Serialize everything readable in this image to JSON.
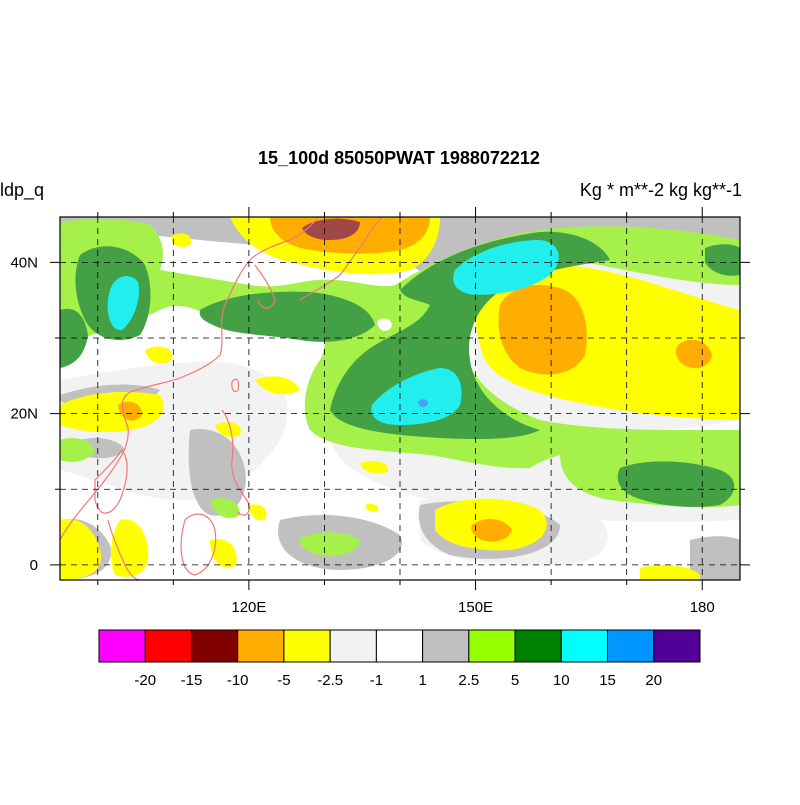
{
  "title": "15_100d 85050PWAT  1988072212",
  "left_label": "ldp_q",
  "units_label": "Kg  * m**-2 kg kg**-1",
  "map": {
    "lon_range": [
      95,
      185
    ],
    "lat_range": [
      -2,
      46
    ],
    "lon_ticks": [
      {
        "value": 120,
        "label": "120E"
      },
      {
        "value": 150,
        "label": "150E"
      },
      {
        "value": 180,
        "label": "180"
      }
    ],
    "lat_ticks": [
      {
        "value": 40,
        "label": "40N"
      },
      {
        "value": 20,
        "label": "20N"
      },
      {
        "value": 0,
        "label": "0"
      }
    ],
    "minor_lon_ticks": [
      100,
      110,
      130,
      140,
      160,
      170
    ],
    "minor_lat_ticks": [
      10,
      30
    ],
    "grid": "dashed every 10 degrees",
    "coastline_color": "#f07878"
  },
  "colorbar": {
    "colors": [
      "#ff00ff",
      "#ff0000",
      "#800000",
      "#ffad00",
      "#ffff00",
      "#f2f2f2",
      "#ffffff",
      "#c0c0c0",
      "#96ff00",
      "#008000",
      "#00ffff",
      "#0096ff",
      "#500096"
    ],
    "labels": [
      "-20",
      "-15",
      "-10",
      "-5",
      "-2.5",
      "-1",
      "1",
      "2.5",
      "5",
      "10",
      "15",
      "20"
    ]
  }
}
